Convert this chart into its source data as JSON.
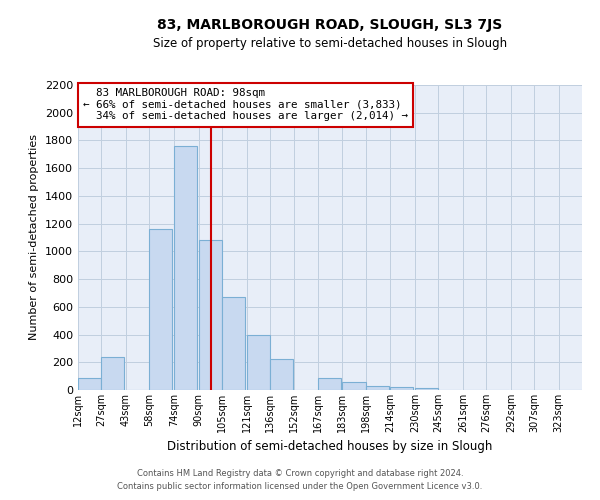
{
  "title": "83, MARLBOROUGH ROAD, SLOUGH, SL3 7JS",
  "subtitle": "Size of property relative to semi-detached houses in Slough",
  "xlabel": "Distribution of semi-detached houses by size in Slough",
  "ylabel": "Number of semi-detached properties",
  "bin_labels": [
    "12sqm",
    "27sqm",
    "43sqm",
    "58sqm",
    "74sqm",
    "90sqm",
    "105sqm",
    "121sqm",
    "136sqm",
    "152sqm",
    "167sqm",
    "183sqm",
    "198sqm",
    "214sqm",
    "230sqm",
    "245sqm",
    "261sqm",
    "276sqm",
    "292sqm",
    "307sqm",
    "323sqm"
  ],
  "bin_lefts": [
    12,
    27,
    43,
    58,
    74,
    90,
    105,
    121,
    136,
    152,
    167,
    183,
    198,
    214,
    230,
    245,
    261,
    276,
    292,
    307,
    323
  ],
  "bin_width": 15,
  "bar_heights": [
    90,
    240,
    0,
    1160,
    1760,
    1085,
    670,
    395,
    225,
    0,
    85,
    60,
    30,
    25,
    15,
    0,
    0,
    0,
    0,
    0,
    0
  ],
  "vline_x": 98,
  "property_label": "83 MARLBOROUGH ROAD: 98sqm",
  "smaller_pct": 66,
  "smaller_count": 3833,
  "larger_pct": 34,
  "larger_count": 2014,
  "bar_color": "#c8d9f0",
  "bar_edge_color": "#7bafd4",
  "vline_color": "#cc0000",
  "ylim": [
    0,
    2200
  ],
  "yticks": [
    0,
    200,
    400,
    600,
    800,
    1000,
    1200,
    1400,
    1600,
    1800,
    2000,
    2200
  ],
  "grid_color": "#c0cfdf",
  "background_color": "#e8eef8",
  "ann_box_facecolor": "#ffffff",
  "ann_box_edgecolor": "#cc0000",
  "footer_line1": "Contains HM Land Registry data © Crown copyright and database right 2024.",
  "footer_line2": "Contains public sector information licensed under the Open Government Licence v3.0."
}
